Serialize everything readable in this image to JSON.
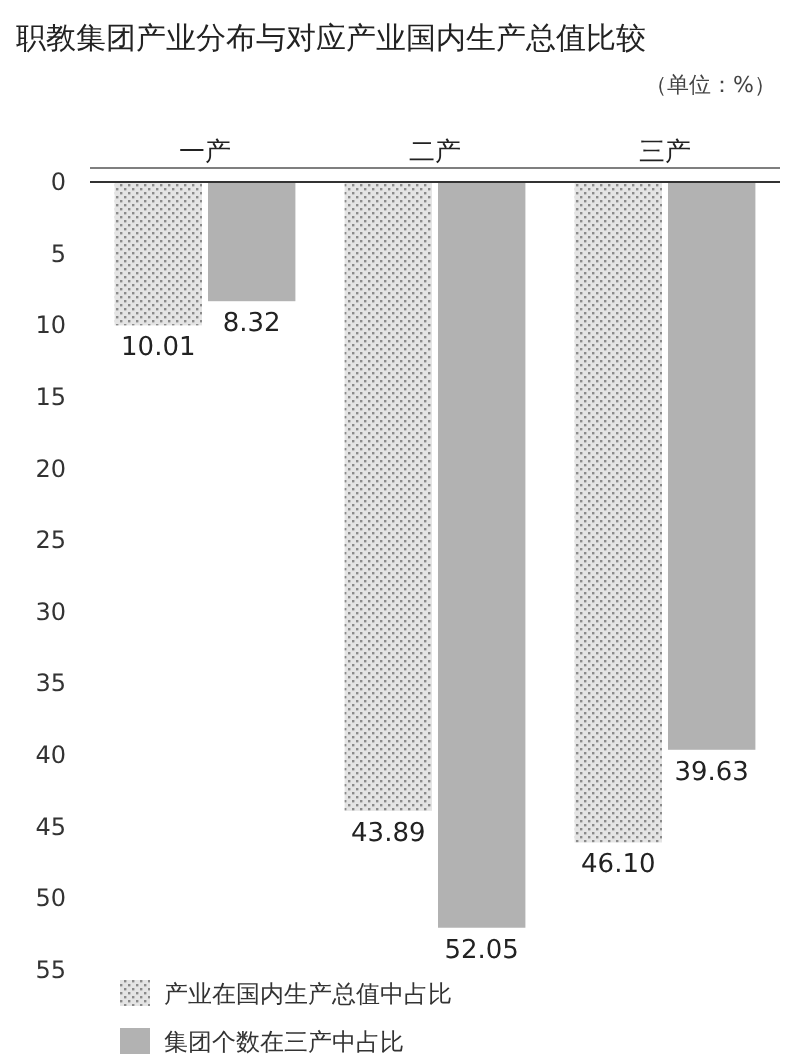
{
  "chart_data": {
    "type": "bar",
    "title": "职教集团产业分布与对应产业国内生产总值比较",
    "subtitle": "（单位：%）",
    "categories": [
      "一产",
      "二产",
      "三产"
    ],
    "series": [
      {
        "name": "产业在国内生产总值中占比",
        "color": "#e4e4e4",
        "values": [
          10.01,
          43.89,
          46.1
        ],
        "value_labels": [
          "10.01",
          "43.89",
          "46.10"
        ]
      },
      {
        "name": "集团个数在三产中占比",
        "color": "#b2b2b2",
        "values": [
          8.32,
          52.05,
          39.63
        ],
        "value_labels": [
          "8.32",
          "52.05",
          "39.63"
        ]
      }
    ],
    "ylim": [
      55,
      0
    ],
    "yticks": [
      0,
      5,
      10,
      15,
      20,
      25,
      30,
      35,
      40,
      45,
      50,
      55
    ],
    "legend": "bottom left"
  }
}
